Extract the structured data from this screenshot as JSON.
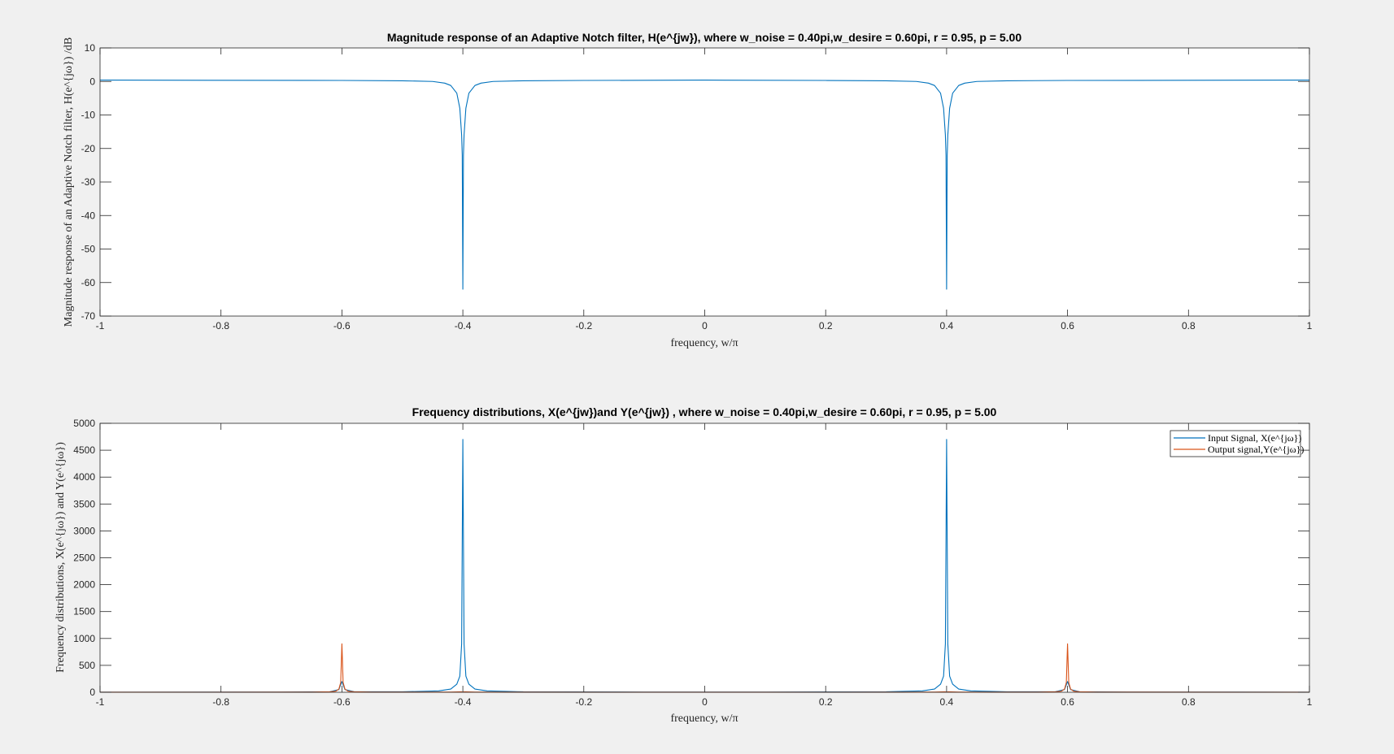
{
  "chart_data": [
    {
      "type": "line",
      "title": "Magnitude response of an Adaptive Notch filter, H(e^{jw}), where w_noise = 0.40pi,w_desire = 0.60pi, r = 0.95, p = 5.00",
      "xlabel": "frequency, w/π",
      "ylabel": "Magnitude response of an Adaptive Notch filter, H(e^{jω}) /dB",
      "xlim": [
        -1,
        1
      ],
      "ylim": [
        -70,
        10
      ],
      "xticks": [
        "-1",
        "-0.8",
        "-0.6",
        "-0.4",
        "-0.2",
        "0",
        "0.2",
        "0.4",
        "0.6",
        "0.8",
        "1"
      ],
      "yticks": [
        "10",
        "0",
        "-10",
        "-20",
        "-30",
        "-40",
        "-50",
        "-60",
        "-70"
      ],
      "grid": false,
      "series": [
        {
          "color": "#0072BD",
          "baseline": 0.4,
          "x": [
            -1,
            -0.6,
            -0.5,
            -0.45,
            -0.43,
            -0.42,
            -0.41,
            -0.405,
            -0.402,
            -0.401,
            -0.4,
            -0.399,
            -0.398,
            -0.395,
            -0.39,
            -0.38,
            -0.37,
            -0.35,
            -0.3,
            -0.2,
            0,
            0.2,
            0.3,
            0.35,
            0.37,
            0.38,
            0.39,
            0.395,
            0.398,
            0.399,
            0.4,
            0.401,
            0.402,
            0.405,
            0.41,
            0.42,
            0.43,
            0.45,
            0.5,
            0.6,
            1
          ],
          "y": [
            0.4,
            0.3,
            0.2,
            0,
            -0.5,
            -1.2,
            -3.5,
            -8,
            -16,
            -22,
            -62,
            -22,
            -16,
            -8,
            -3.5,
            -1.2,
            -0.5,
            0,
            0.2,
            0.3,
            0.4,
            0.3,
            0.2,
            0,
            -0.5,
            -1.2,
            -3.5,
            -8,
            -16,
            -22,
            -62,
            -22,
            -16,
            -8,
            -3.5,
            -1.2,
            -0.5,
            0,
            0.2,
            0.3,
            0.4
          ]
        }
      ]
    },
    {
      "type": "line",
      "title": "Frequency distributions, X(e^{jw})and Y(e^{jw}) , where w_noise = 0.40pi,w_desire = 0.60pi, r = 0.95, p = 5.00",
      "xlabel": "frequency, w/π",
      "ylabel": "Frequency distributions, X(e^{jω}) and Y(e^{jω})",
      "xlim": [
        -1,
        1
      ],
      "ylim": [
        0,
        5000
      ],
      "xticks": [
        "-1",
        "-0.8",
        "-0.6",
        "-0.4",
        "-0.2",
        "0",
        "0.2",
        "0.4",
        "0.6",
        "0.8",
        "1"
      ],
      "yticks": [
        "5000",
        "4500",
        "4000",
        "3500",
        "3000",
        "2500",
        "2000",
        "1500",
        "1000",
        "500",
        "0"
      ],
      "grid": false,
      "legend": "top-right",
      "series": [
        {
          "name": "Input Signal, X(e^{jω})",
          "color": "#0072BD",
          "x": [
            -1,
            -0.7,
            -0.62,
            -0.605,
            -0.6,
            -0.595,
            -0.58,
            -0.5,
            -0.44,
            -0.42,
            -0.41,
            -0.405,
            -0.402,
            -0.4,
            -0.398,
            -0.395,
            -0.39,
            -0.38,
            -0.36,
            -0.3,
            -0.1,
            0.1,
            0.3,
            0.36,
            0.38,
            0.39,
            0.395,
            0.398,
            0.4,
            0.402,
            0.405,
            0.41,
            0.42,
            0.44,
            0.5,
            0.58,
            0.595,
            0.6,
            0.605,
            0.62,
            0.7,
            1
          ],
          "y": [
            2,
            3,
            8,
            50,
            200,
            50,
            10,
            8,
            25,
            60,
            150,
            300,
            900,
            4700,
            900,
            300,
            150,
            60,
            25,
            8,
            4,
            4,
            8,
            25,
            60,
            150,
            300,
            900,
            4700,
            900,
            300,
            150,
            60,
            25,
            8,
            10,
            50,
            200,
            50,
            8,
            3,
            2
          ]
        },
        {
          "name": "Output signal,Y(e^{jω})",
          "color": "#D95319",
          "x": [
            -1,
            -0.65,
            -0.62,
            -0.61,
            -0.605,
            -0.602,
            -0.6,
            -0.598,
            -0.595,
            -0.59,
            -0.58,
            -0.55,
            -0.42,
            -0.402,
            -0.4,
            -0.398,
            -0.38,
            -0.1,
            0.1,
            0.38,
            0.398,
            0.4,
            0.402,
            0.42,
            0.55,
            0.58,
            0.59,
            0.595,
            0.598,
            0.6,
            0.602,
            0.605,
            0.61,
            0.62,
            0.65,
            1
          ],
          "y": [
            1,
            3,
            8,
            20,
            60,
            180,
            900,
            180,
            60,
            20,
            8,
            3,
            3,
            8,
            2,
            8,
            3,
            1,
            1,
            3,
            8,
            2,
            8,
            3,
            3,
            8,
            20,
            60,
            180,
            900,
            180,
            60,
            20,
            8,
            3,
            1
          ]
        }
      ]
    }
  ]
}
